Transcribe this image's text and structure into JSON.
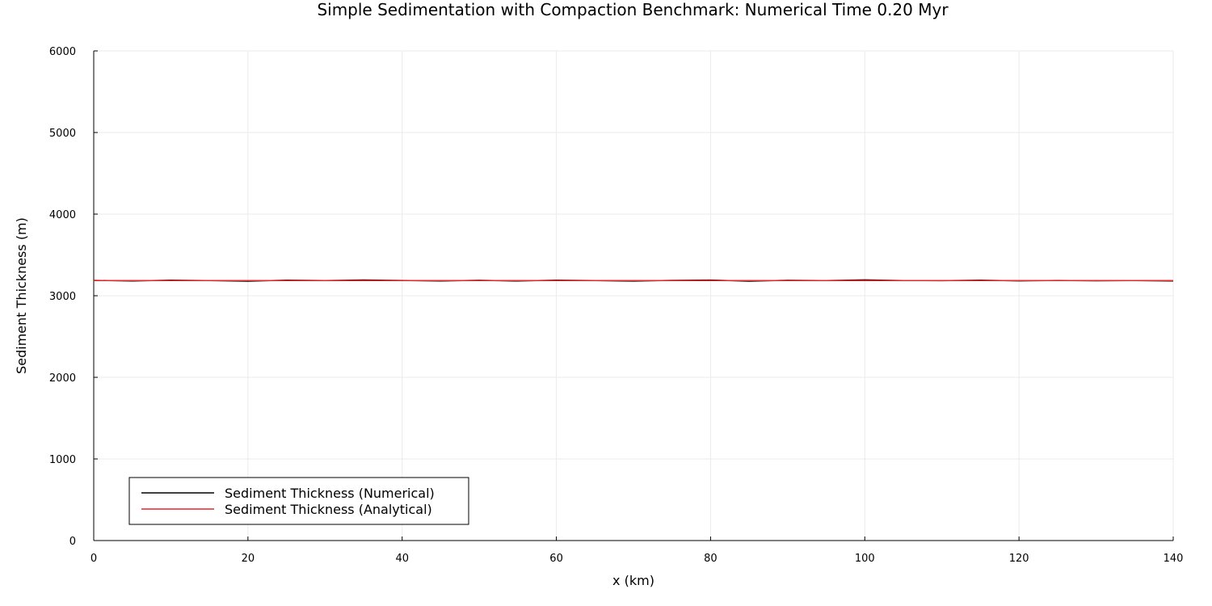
{
  "chart_data": {
    "type": "line",
    "title": "Simple Sedimentation with Compaction Benchmark: Numerical Time 0.20 Myr",
    "xlabel": "x (km)",
    "ylabel": "Sediment Thickness (m)",
    "xlim": [
      0,
      140
    ],
    "ylim": [
      0,
      6000
    ],
    "x_ticks": [
      0,
      20,
      40,
      60,
      80,
      100,
      120,
      140
    ],
    "y_ticks": [
      0,
      1000,
      2000,
      3000,
      4000,
      5000,
      6000
    ],
    "grid": true,
    "legend_position": "bottom-left",
    "series": [
      {
        "name": "Sediment Thickness (Numerical)",
        "color": "#000000",
        "x": [
          0,
          5,
          10,
          15,
          20,
          25,
          30,
          35,
          40,
          45,
          50,
          55,
          60,
          65,
          70,
          75,
          80,
          85,
          90,
          95,
          100,
          105,
          110,
          115,
          120,
          125,
          130,
          135,
          140
        ],
        "y": [
          3188,
          3180,
          3190,
          3185,
          3178,
          3191,
          3186,
          3193,
          3187,
          3181,
          3189,
          3180,
          3190,
          3186,
          3179,
          3188,
          3192,
          3178,
          3189,
          3185,
          3194,
          3186,
          3184,
          3190,
          3182,
          3187,
          3183,
          3186,
          3180
        ]
      },
      {
        "name": "Sediment Thickness (Analytical)",
        "color": "#e8242b",
        "x": [
          0,
          140
        ],
        "y": [
          3186,
          3186
        ]
      }
    ]
  }
}
